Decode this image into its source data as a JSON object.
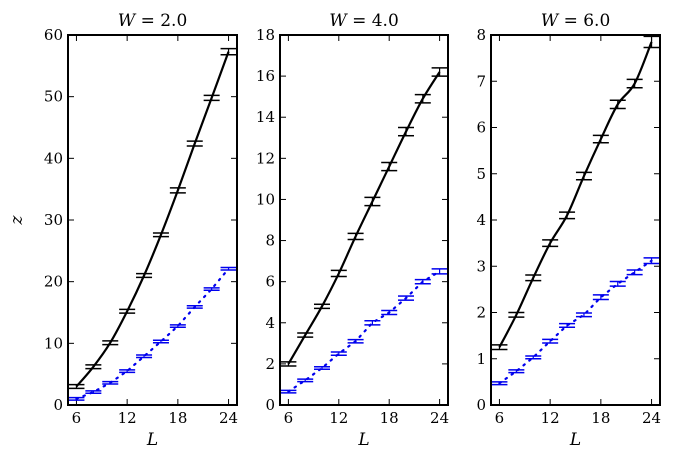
{
  "chart_data": [
    {
      "type": "line",
      "title": "W = 2.0",
      "xlabel": "L",
      "ylabel": "z",
      "xlim": [
        5,
        25
      ],
      "ylim": [
        0,
        60
      ],
      "xticks": [
        "6",
        "12",
        "18",
        "24"
      ],
      "xtick_values": [
        6,
        12,
        18,
        24
      ],
      "yticks": [
        "0",
        "10",
        "20",
        "30",
        "40",
        "50",
        "60"
      ],
      "ytick_values": [
        0,
        10,
        20,
        30,
        40,
        50,
        60
      ],
      "series": [
        {
          "color": "#000000",
          "style": "solid",
          "x": [
            6,
            8,
            10,
            12,
            14,
            16,
            18,
            20,
            22,
            24
          ],
          "y": [
            3.0,
            6.2,
            10.1,
            15.2,
            21.0,
            27.6,
            34.8,
            42.4,
            49.8,
            57.3
          ],
          "err": [
            0.3,
            0.3,
            0.3,
            0.3,
            0.3,
            0.3,
            0.4,
            0.4,
            0.4,
            0.5
          ]
        },
        {
          "color": "#0000ee",
          "style": "dotted",
          "x": [
            6,
            8,
            10,
            12,
            14,
            16,
            18,
            20,
            22,
            24
          ],
          "y": [
            1.0,
            2.1,
            3.6,
            5.5,
            7.9,
            10.3,
            12.8,
            15.9,
            18.8,
            22.1
          ],
          "err": [
            0.2,
            0.2,
            0.2,
            0.2,
            0.2,
            0.2,
            0.2,
            0.2,
            0.2,
            0.2
          ]
        }
      ]
    },
    {
      "type": "line",
      "title": "W = 4.0",
      "xlabel": "L",
      "ylabel": "",
      "xlim": [
        5,
        25
      ],
      "ylim": [
        0,
        18
      ],
      "xticks": [
        "6",
        "12",
        "18",
        "24"
      ],
      "xtick_values": [
        6,
        12,
        18,
        24
      ],
      "yticks": [
        "0",
        "2",
        "4",
        "6",
        "8",
        "10",
        "12",
        "14",
        "16",
        "18"
      ],
      "ytick_values": [
        0,
        2,
        4,
        6,
        8,
        10,
        12,
        14,
        16,
        18
      ],
      "series": [
        {
          "color": "#000000",
          "style": "solid",
          "x": [
            6,
            8,
            10,
            12,
            14,
            16,
            18,
            20,
            22,
            24
          ],
          "y": [
            2.0,
            3.4,
            4.8,
            6.4,
            8.2,
            9.9,
            11.6,
            13.3,
            14.9,
            16.2
          ],
          "err": [
            0.1,
            0.1,
            0.1,
            0.15,
            0.15,
            0.2,
            0.2,
            0.2,
            0.2,
            0.2
          ]
        },
        {
          "color": "#0000ee",
          "style": "dotted",
          "x": [
            6,
            8,
            10,
            12,
            14,
            16,
            18,
            20,
            22,
            24
          ],
          "y": [
            0.65,
            1.2,
            1.8,
            2.5,
            3.1,
            4.0,
            4.5,
            5.2,
            6.0,
            6.5
          ],
          "err": [
            0.06,
            0.06,
            0.06,
            0.08,
            0.08,
            0.1,
            0.1,
            0.1,
            0.1,
            0.12
          ]
        }
      ]
    },
    {
      "type": "line",
      "title": "W = 6.0",
      "xlabel": "L",
      "ylabel": "",
      "xlim": [
        5,
        25
      ],
      "ylim": [
        0,
        8
      ],
      "xticks": [
        "6",
        "12",
        "18",
        "24"
      ],
      "xtick_values": [
        6,
        12,
        18,
        24
      ],
      "yticks": [
        "0",
        "1",
        "2",
        "3",
        "4",
        "5",
        "6",
        "7",
        "8"
      ],
      "ytick_values": [
        0,
        1,
        2,
        3,
        4,
        5,
        6,
        7,
        8
      ],
      "series": [
        {
          "color": "#000000",
          "style": "solid",
          "x": [
            6,
            8,
            10,
            12,
            14,
            16,
            18,
            20,
            22,
            24
          ],
          "y": [
            1.25,
            1.95,
            2.75,
            3.5,
            4.1,
            4.95,
            5.75,
            6.5,
            6.95,
            7.85
          ],
          "err": [
            0.05,
            0.05,
            0.06,
            0.07,
            0.07,
            0.08,
            0.08,
            0.09,
            0.09,
            0.12
          ]
        },
        {
          "color": "#0000ee",
          "style": "dotted",
          "x": [
            6,
            8,
            10,
            12,
            14,
            16,
            18,
            20,
            22,
            24
          ],
          "y": [
            0.47,
            0.73,
            1.03,
            1.38,
            1.72,
            1.95,
            2.33,
            2.62,
            2.87,
            3.12
          ],
          "err": [
            0.03,
            0.03,
            0.03,
            0.04,
            0.04,
            0.04,
            0.05,
            0.05,
            0.05,
            0.06
          ]
        }
      ]
    }
  ]
}
